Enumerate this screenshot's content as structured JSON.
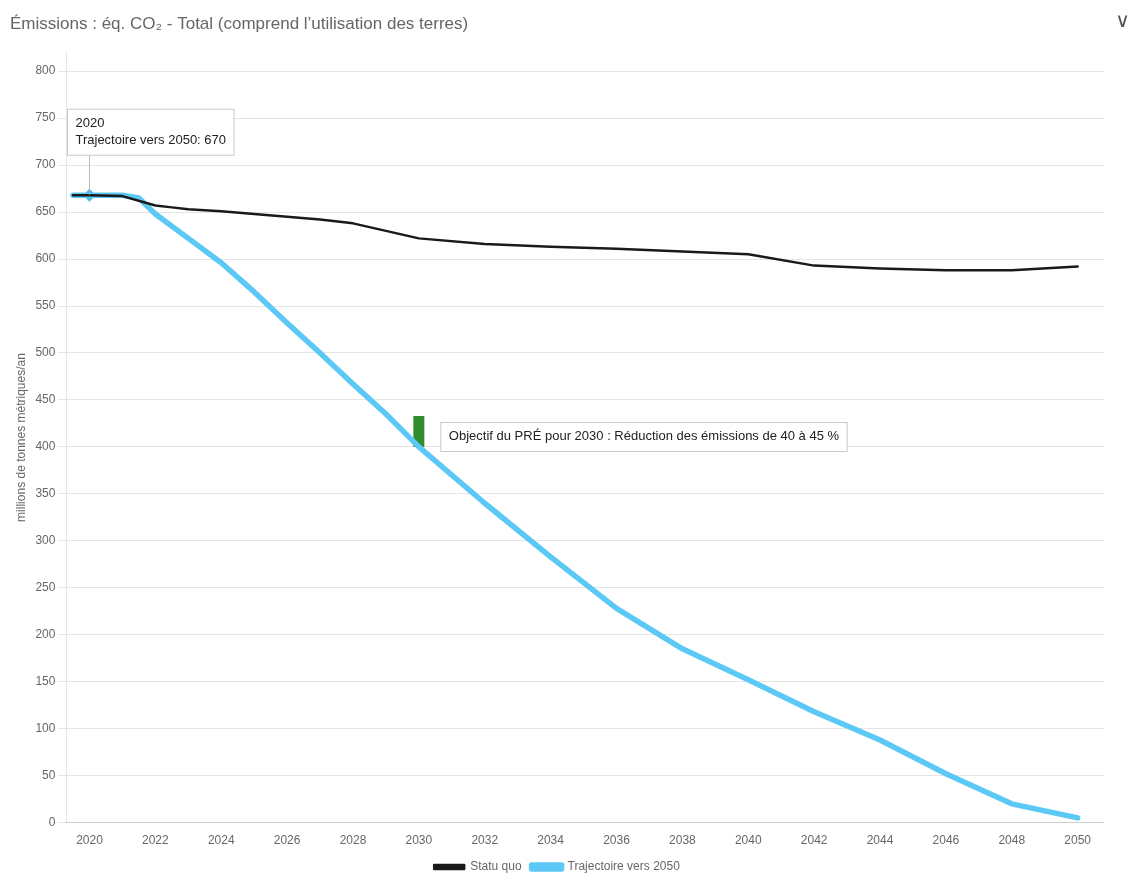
{
  "chart_data": {
    "type": "line",
    "title": "Émissions : éq. CO₂ - Total (comprend l’utilisation des terres)",
    "y_label": "millions de tonnes métriques/an",
    "xlim": [
      2019.3,
      2050.8
    ],
    "ylim": [
      0,
      820
    ],
    "xticks": [
      2020,
      2022,
      2024,
      2026,
      2028,
      2030,
      2032,
      2034,
      2036,
      2038,
      2040,
      2042,
      2044,
      2046,
      2048,
      2050
    ],
    "yticks": [
      0,
      50,
      100,
      150,
      200,
      250,
      300,
      350,
      400,
      450,
      500,
      550,
      600,
      650,
      700,
      750,
      800
    ],
    "grid": "y",
    "legend": "bottom",
    "series": [
      {
        "name": "Statu quo",
        "color": "#1a1a1a",
        "x": [
          2019.5,
          2020,
          2021,
          2022,
          2022.5,
          2023,
          2024,
          2025,
          2026,
          2027,
          2028,
          2029,
          2030,
          2032,
          2034,
          2036,
          2038,
          2040,
          2042,
          2044,
          2046,
          2048,
          2050
        ],
        "values": [
          668,
          668,
          667,
          657,
          655,
          653,
          651,
          648,
          645,
          642,
          638,
          630,
          622,
          616,
          613,
          611,
          608,
          605,
          593,
          590,
          588,
          588,
          592
        ]
      },
      {
        "name": "Trajectoire vers 2050",
        "color": "#5bc8f5",
        "x": [
          2019.5,
          2020,
          2020.5,
          2021,
          2021.5,
          2022,
          2023,
          2024,
          2025,
          2026,
          2027,
          2028,
          2029,
          2030,
          2032,
          2034,
          2036,
          2038,
          2040,
          2042,
          2044,
          2046,
          2048,
          2050
        ],
        "values": [
          668,
          668,
          668,
          668,
          665,
          648,
          622,
          596,
          565,
          532,
          500,
          467,
          435,
          400,
          340,
          283,
          228,
          185,
          152,
          118,
          88,
          52,
          20,
          5
        ]
      }
    ],
    "points": [
      {
        "x": 2020,
        "y": 668,
        "color": "#4ab8e8",
        "marker": "diamond"
      }
    ],
    "target_bar": {
      "x": 2030,
      "bottom": 400,
      "top": 433,
      "color": "#2e8b2e"
    },
    "annotations": [
      {
        "x": 2020,
        "y": 668,
        "text": [
          "2020",
          "Trajectoire vers 2050: 670"
        ]
      },
      {
        "x": 2030,
        "y": 400,
        "text": [
          "Objectif du PRÉ pour 2030 : Réduction des émissions de 40 à 45 %"
        ]
      }
    ],
    "menu_symbol": "∨"
  }
}
